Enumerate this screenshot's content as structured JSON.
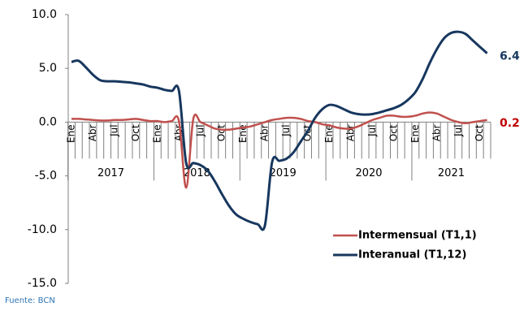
{
  "chart_data": {
    "type": "line",
    "categories": [
      "Ene",
      null,
      null,
      "Abr",
      null,
      null,
      "Jul",
      null,
      null,
      "Oct",
      null,
      null,
      "Ene",
      null,
      null,
      "Abr",
      null,
      null,
      "Jul",
      null,
      null,
      "Oct",
      null,
      null,
      "Ene",
      null,
      null,
      "Abr",
      null,
      null,
      "Jul",
      null,
      null,
      "Oct",
      null,
      null,
      "Ene",
      null,
      null,
      "Abr",
      null,
      null,
      "Jul",
      null,
      null,
      "Oct",
      null,
      null,
      "Ene",
      null,
      null,
      "Abr",
      null,
      null,
      "Jul",
      null,
      null,
      "Oct",
      null
    ],
    "year_groups": [
      "2017",
      "2018",
      "2019",
      "2020",
      "2021"
    ],
    "ylim": [
      -15,
      10
    ],
    "yticks": [
      {
        "value": -15,
        "label": "-15.0"
      },
      {
        "value": -10,
        "label": "-10.0"
      },
      {
        "value": -5,
        "label": "-5.0"
      },
      {
        "value": 0,
        "label": "0.0"
      },
      {
        "value": 5,
        "label": "5.0"
      },
      {
        "value": 10,
        "label": "10.0"
      }
    ],
    "legend": "bottom-right",
    "source": "Fuente: BCN",
    "series": [
      {
        "name": "Intermensual (T1,1)",
        "color": "#c0504d",
        "label_color": "#c00000",
        "values": [
          0.3,
          0.3,
          0.25,
          0.2,
          0.15,
          0.15,
          0.2,
          0.2,
          0.25,
          0.3,
          0.2,
          0.1,
          0.1,
          0.0,
          0.1,
          0.1,
          -6.1,
          0.3,
          0.0,
          -0.3,
          -0.6,
          -0.7,
          -0.7,
          -0.6,
          -0.5,
          -0.4,
          -0.2,
          0.0,
          0.2,
          0.3,
          0.4,
          0.4,
          0.3,
          0.1,
          0.0,
          -0.2,
          -0.3,
          -0.5,
          -0.6,
          -0.6,
          -0.4,
          -0.1,
          0.2,
          0.4,
          0.6,
          0.6,
          0.5,
          0.5,
          0.6,
          0.8,
          0.9,
          0.8,
          0.5,
          0.2,
          0.0,
          -0.1,
          0.0,
          0.1,
          0.2
        ]
      },
      {
        "name": "Interanual (T1,12)",
        "color": "#17375e",
        "label_color": "#17375e",
        "values": [
          5.6,
          5.7,
          5.1,
          4.4,
          3.9,
          3.8,
          3.8,
          3.75,
          3.7,
          3.6,
          3.5,
          3.3,
          3.2,
          3.0,
          2.9,
          2.9,
          -3.8,
          -3.8,
          -4.0,
          -4.5,
          -5.5,
          -6.7,
          -7.8,
          -8.6,
          -9.0,
          -9.3,
          -9.5,
          -9.6,
          -3.7,
          -3.6,
          -3.4,
          -2.8,
          -1.8,
          -0.8,
          0.4,
          1.2,
          1.6,
          1.5,
          1.2,
          0.9,
          0.75,
          0.7,
          0.75,
          0.9,
          1.1,
          1.3,
          1.6,
          2.1,
          2.8,
          4.0,
          5.5,
          6.8,
          7.8,
          8.3,
          8.4,
          8.2,
          7.6,
          7.0,
          6.4
        ]
      }
    ]
  }
}
